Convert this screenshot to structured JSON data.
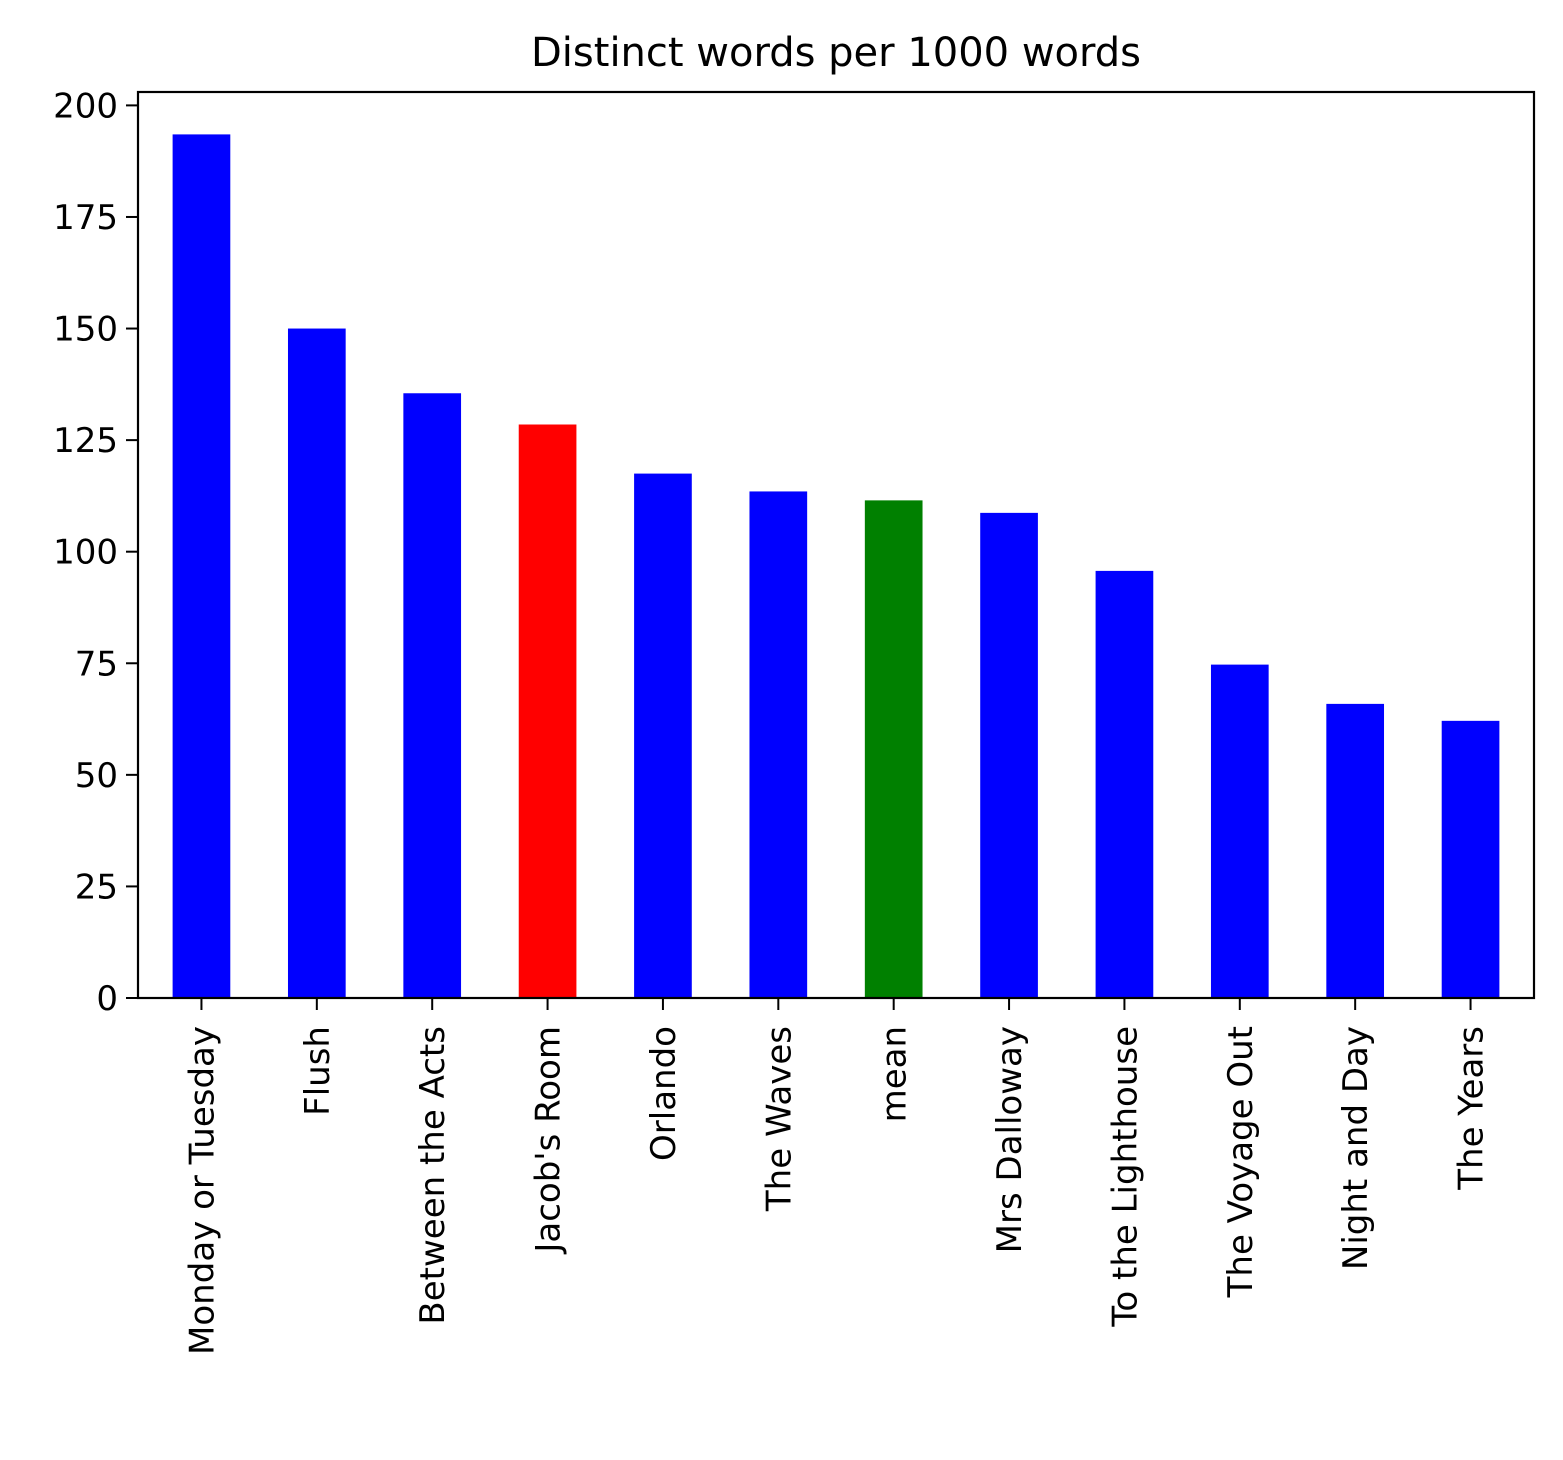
{
  "chart_data": {
    "type": "bar",
    "title": "Distinct words per 1000 words",
    "xlabel": "",
    "ylabel": "",
    "categories": [
      "Monday or Tuesday",
      "Flush",
      "Between the Acts",
      "Jacob's Room",
      "Orlando",
      "The Waves",
      "mean",
      "Mrs Dalloway",
      "To the Lighthouse",
      "The Voyage Out",
      "Night and Day",
      "The Years"
    ],
    "values": [
      193.5,
      150.0,
      135.5,
      128.5,
      117.5,
      113.5,
      111.5,
      108.7,
      95.7,
      74.7,
      65.9,
      62.1
    ],
    "bar_colors": [
      "#0000ff",
      "#0000ff",
      "#0000ff",
      "#ff0000",
      "#0000ff",
      "#0000ff",
      "#008000",
      "#0000ff",
      "#0000ff",
      "#0000ff",
      "#0000ff",
      "#0000ff"
    ],
    "ylim": [
      0,
      203
    ],
    "yticks": [
      0,
      25,
      50,
      75,
      100,
      125,
      150,
      175,
      200
    ],
    "grid": false,
    "legend": false
  }
}
